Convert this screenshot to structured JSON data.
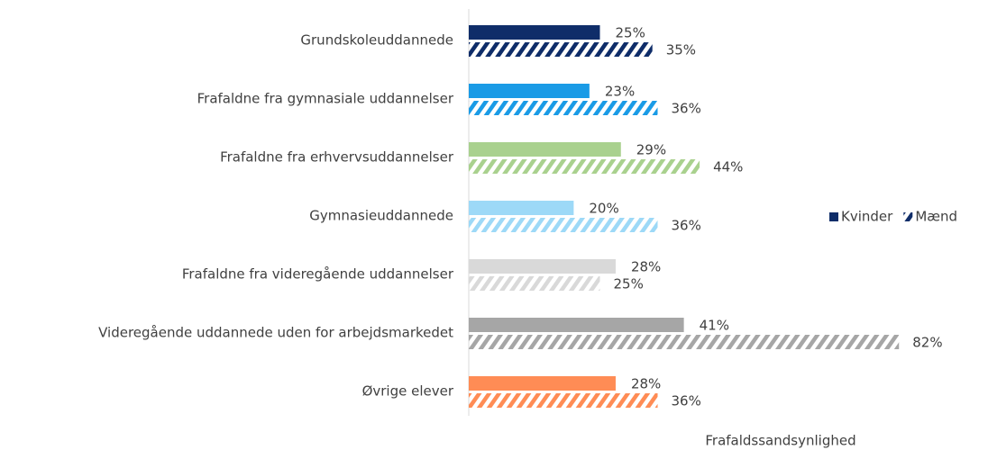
{
  "chart_data": {
    "type": "bar",
    "orientation": "horizontal",
    "xlabel": "Frafaldssandsynlighed",
    "categories": [
      "Grundskoleuddannede",
      "Frafaldne fra gymnasiale uddannelser",
      "Frafaldne fra erhvervsuddannelser",
      "Gymnasieuddannede",
      "Frafaldne fra videregående uddannelser",
      "Videregående uddannede uden for arbejdsmarkedet",
      "Øvrige elever"
    ],
    "category_colors": [
      "#0f2d69",
      "#1a9be6",
      "#a9d18e",
      "#9dd9f7",
      "#d9d9d9",
      "#a6a6a6",
      "#ff8c55"
    ],
    "series": [
      {
        "name": "Kvinder",
        "color": "#0f2d69",
        "pattern": "solid",
        "values": [
          25,
          23,
          29,
          20,
          28,
          41,
          28
        ],
        "value_labels": [
          "25%",
          "23%",
          "29%",
          "20%",
          "28%",
          "41%",
          "28%"
        ]
      },
      {
        "name": "Mænd",
        "color": "#0f2d69",
        "pattern": "hatched",
        "values": [
          35,
          36,
          44,
          36,
          25,
          82,
          36
        ],
        "value_labels": [
          "35%",
          "36%",
          "44%",
          "36%",
          "25%",
          "82%",
          "36%"
        ]
      }
    ],
    "legend": "right"
  }
}
